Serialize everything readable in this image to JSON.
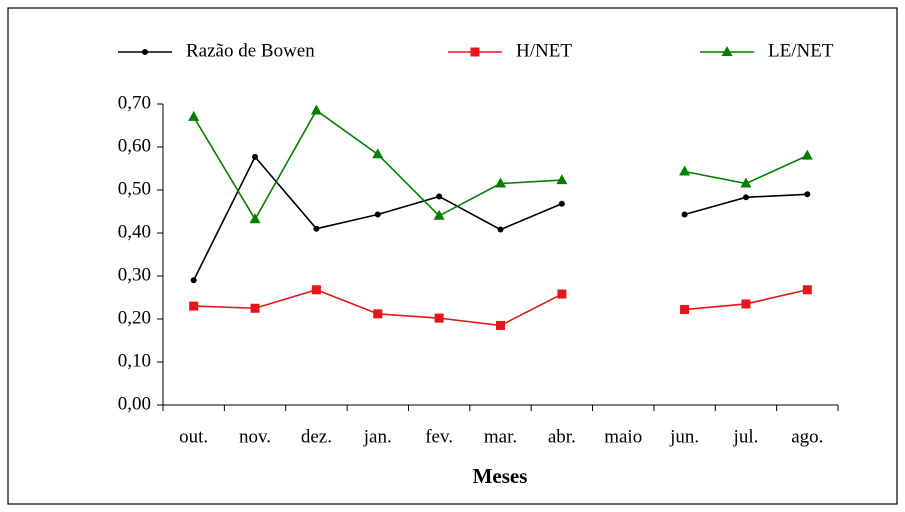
{
  "chart_data": {
    "type": "line",
    "x_label": "Meses",
    "categories": [
      "out.",
      "nov.",
      "dez.",
      "jan.",
      "fev.",
      "mar.",
      "abr.",
      "maio",
      "jun.",
      "jul.",
      "ago."
    ],
    "series": [
      {
        "name": "Razão de Bowen",
        "color": "#000000",
        "marker": "circle",
        "values": [
          0.29,
          0.577,
          0.41,
          0.443,
          0.485,
          0.408,
          0.468,
          null,
          0.443,
          0.483,
          0.49
        ]
      },
      {
        "name": "H/NET",
        "color": "#e8141a",
        "marker": "square",
        "values": [
          0.23,
          0.225,
          0.268,
          0.212,
          0.202,
          0.185,
          0.258,
          null,
          0.222,
          0.235,
          0.268
        ]
      },
      {
        "name": "LE/NET",
        "color": "#008000",
        "marker": "triangle",
        "values": [
          0.67,
          0.432,
          0.685,
          0.583,
          0.44,
          0.515,
          0.523,
          null,
          0.543,
          0.515,
          0.58
        ]
      }
    ],
    "ylim": [
      0,
      0.7
    ],
    "yticks": [
      {
        "value": 0,
        "label": "0,00"
      },
      {
        "value": 0.1,
        "label": "0,10"
      },
      {
        "value": 0.2,
        "label": "0,20"
      },
      {
        "value": 0.3,
        "label": "0,30"
      },
      {
        "value": 0.4,
        "label": "0,40"
      },
      {
        "value": 0.5,
        "label": "0,50"
      },
      {
        "value": 0.6,
        "label": "0,60"
      },
      {
        "value": 0.7,
        "label": "0,70"
      }
    ],
    "grid": false
  }
}
